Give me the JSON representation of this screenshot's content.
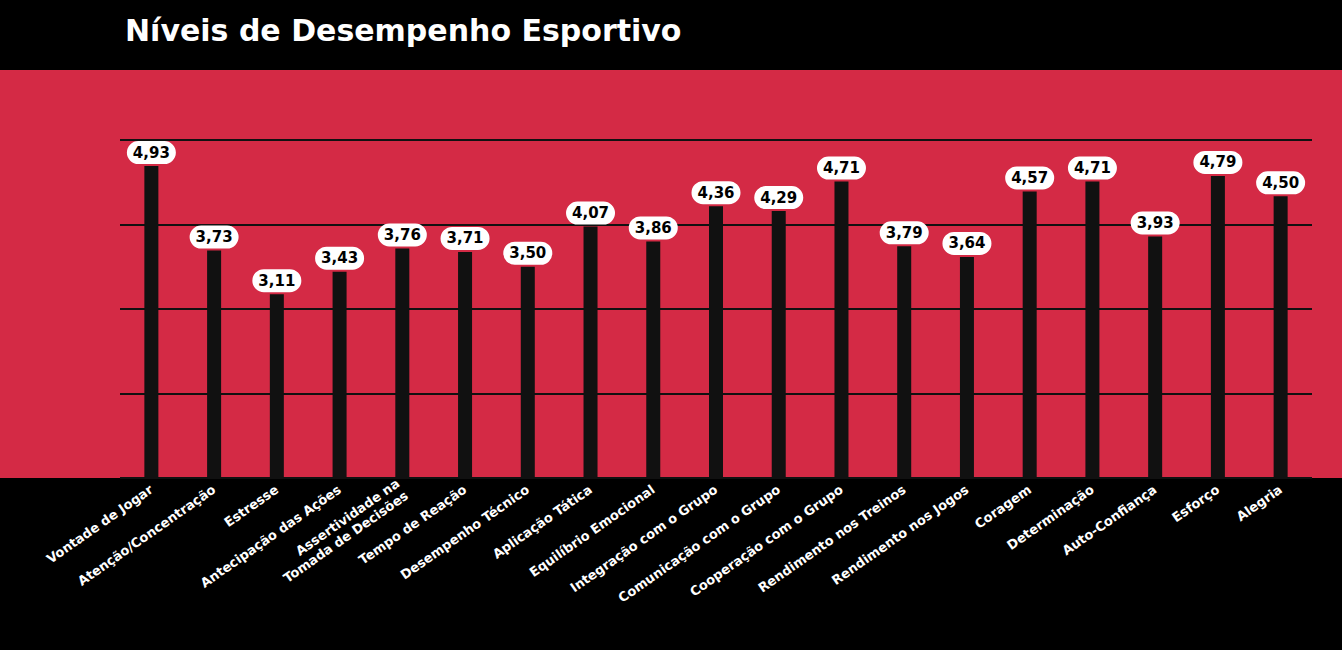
{
  "chart_data": {
    "type": "bar",
    "title": "Níveis de Desempenho Esportivo",
    "categories": [
      "Vontade de Jogar",
      "Atenção/Concentração",
      "Estresse",
      "Antecipação das Ações",
      "Assertividade na Tomada de Decisões",
      "Tempo de Reação",
      "Desempenho Técnico",
      "Aplicação Tática",
      "Equilíbrio Emocional",
      "Integração com o Grupo",
      "Comunicação com o Grupo",
      "Cooperação com o Grupo",
      "Rendimento nos Treinos",
      "Rendimento nos Jogos",
      "Coragem",
      "Determinação",
      "Auto-Confiança",
      "Esforço",
      "Alegria"
    ],
    "values": [
      4.93,
      3.73,
      3.11,
      3.43,
      3.76,
      3.71,
      3.5,
      4.07,
      3.86,
      4.36,
      4.29,
      4.71,
      3.79,
      3.64,
      4.57,
      4.71,
      3.93,
      4.79,
      4.5
    ],
    "value_labels": [
      "4,93",
      "3,73",
      "3,11",
      "3,43",
      "3,76",
      "3,71",
      "3,50",
      "4,07",
      "3,86",
      "4,36",
      "4,29",
      "4,71",
      "3,79",
      "3,64",
      "4,57",
      "4,71",
      "3,93",
      "4,79",
      "4,50"
    ],
    "color": "#111111",
    "ylim": [
      0.5,
      5.3
    ],
    "yticks": [
      0.5,
      1.7,
      2.9,
      4.1,
      5.3
    ],
    "grid": true,
    "data_labels": true,
    "tick_labels": "x"
  }
}
